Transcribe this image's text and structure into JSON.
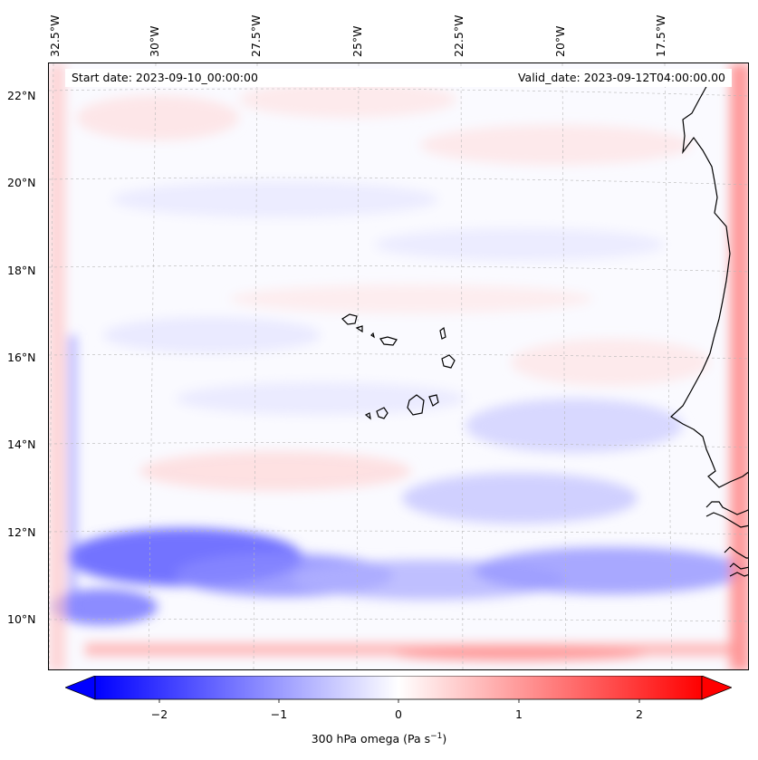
{
  "map": {
    "start_date": "Start date: 2023-09-10_00:00:00",
    "valid_date": "Valid_date: 2023-09-12T04:00:00.00",
    "lon_labels": [
      "32.5°W",
      "30°W",
      "27.5°W",
      "25°W",
      "22.5°W",
      "20°W",
      "17.5°W"
    ],
    "lat_labels": [
      "22°N",
      "20°N",
      "18°N",
      "16°N",
      "14°N",
      "12°N",
      "10°N"
    ],
    "variable_label": "300 hPa omega (Pa s",
    "variable_unit_exp": "−1",
    "variable_label_close": ")"
  },
  "colorbar": {
    "min": -2.7,
    "max": 2.7,
    "ticks": [
      "−2",
      "−1",
      "0",
      "1",
      "2"
    ],
    "tick_values": [
      -2,
      -1,
      0,
      1,
      2
    ],
    "colormap": "bwr",
    "extend": "both"
  },
  "colors": {
    "negative": "#0000ff",
    "neutral": "#ffffff",
    "positive": "#ff0000",
    "coastline": "#000000",
    "gridline": "#b0b0b0"
  }
}
